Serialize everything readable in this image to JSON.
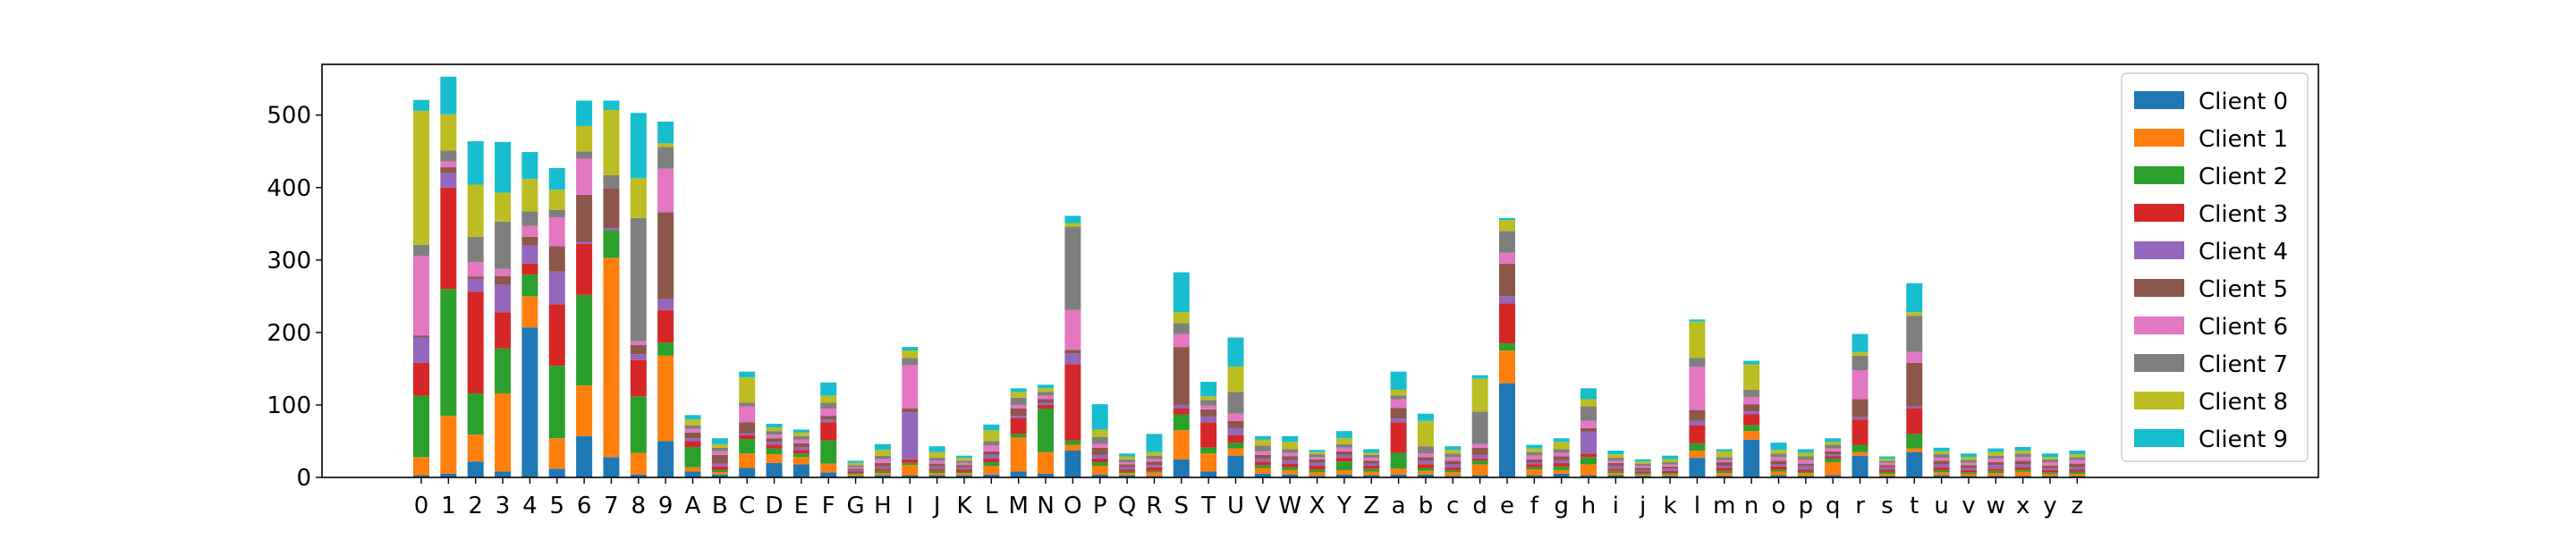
{
  "chart_data": {
    "type": "bar",
    "stacked": true,
    "title": "",
    "xlabel": "",
    "ylabel": "",
    "ylim": [
      0,
      570
    ],
    "yticks": [
      0,
      100,
      200,
      300,
      400,
      500
    ],
    "grid": false,
    "legend_position": "top-right",
    "categories": [
      "0",
      "1",
      "2",
      "3",
      "4",
      "5",
      "6",
      "7",
      "8",
      "9",
      "A",
      "B",
      "C",
      "D",
      "E",
      "F",
      "G",
      "H",
      "I",
      "J",
      "K",
      "L",
      "M",
      "N",
      "O",
      "P",
      "Q",
      "R",
      "S",
      "T",
      "U",
      "V",
      "W",
      "X",
      "Y",
      "Z",
      "a",
      "b",
      "c",
      "d",
      "e",
      "f",
      "g",
      "h",
      "i",
      "j",
      "k",
      "l",
      "m",
      "n",
      "o",
      "p",
      "q",
      "r",
      "s",
      "t",
      "u",
      "v",
      "w",
      "x",
      "y",
      "z"
    ],
    "series": [
      {
        "name": "Client 0",
        "color": "#1f77b4",
        "values": [
          3,
          5,
          22,
          8,
          207,
          12,
          57,
          28,
          4,
          50,
          8,
          4,
          13,
          20,
          18,
          7,
          2,
          3,
          3,
          3,
          3,
          4,
          8,
          5,
          37,
          4,
          3,
          2,
          25,
          8,
          30,
          5,
          4,
          2,
          4,
          3,
          4,
          4,
          2,
          3,
          130,
          3,
          5,
          3,
          3,
          2,
          2,
          27,
          2,
          52,
          3,
          2,
          3,
          30,
          2,
          35,
          3,
          2,
          2,
          2,
          2,
          2
        ]
      },
      {
        "name": "Client 1",
        "color": "#ff7f0e",
        "values": [
          25,
          80,
          37,
          108,
          43,
          42,
          70,
          275,
          30,
          118,
          6,
          3,
          20,
          12,
          10,
          12,
          2,
          3,
          14,
          3,
          3,
          12,
          47,
          30,
          8,
          12,
          3,
          5,
          40,
          25,
          10,
          8,
          6,
          5,
          6,
          5,
          8,
          5,
          5,
          15,
          45,
          8,
          5,
          15,
          3,
          2,
          2,
          10,
          4,
          12,
          5,
          4,
          18,
          5,
          3,
          5,
          4,
          3,
          4,
          6,
          3,
          3
        ]
      },
      {
        "name": "Client 2",
        "color": "#2ca02c",
        "values": [
          85,
          175,
          57,
          62,
          30,
          100,
          125,
          38,
          78,
          18,
          28,
          3,
          20,
          8,
          5,
          32,
          2,
          3,
          3,
          3,
          2,
          5,
          5,
          60,
          6,
          5,
          2,
          2,
          22,
          8,
          8,
          4,
          4,
          4,
          12,
          4,
          22,
          4,
          3,
          5,
          10,
          3,
          5,
          10,
          3,
          2,
          2,
          10,
          3,
          8,
          3,
          2,
          5,
          10,
          3,
          20,
          3,
          2,
          3,
          3,
          2,
          3
        ]
      },
      {
        "name": "Client 3",
        "color": "#d62728",
        "values": [
          45,
          140,
          140,
          50,
          15,
          85,
          70,
          0,
          50,
          45,
          8,
          5,
          5,
          5,
          5,
          25,
          2,
          3,
          5,
          3,
          3,
          5,
          22,
          5,
          105,
          5,
          3,
          5,
          8,
          35,
          10,
          5,
          5,
          5,
          5,
          4,
          42,
          5,
          4,
          3,
          55,
          4,
          5,
          5,
          3,
          2,
          3,
          25,
          4,
          15,
          4,
          3,
          3,
          35,
          3,
          35,
          4,
          3,
          3,
          3,
          3,
          3
        ]
      },
      {
        "name": "Client 4",
        "color": "#9467bd",
        "values": [
          35,
          20,
          18,
          38,
          25,
          45,
          3,
          3,
          8,
          15,
          4,
          4,
          3,
          4,
          4,
          4,
          2,
          3,
          65,
          3,
          3,
          5,
          3,
          3,
          15,
          5,
          3,
          3,
          5,
          8,
          10,
          4,
          5,
          4,
          4,
          3,
          5,
          5,
          4,
          5,
          10,
          3,
          4,
          30,
          4,
          2,
          3,
          6,
          3,
          4,
          3,
          5,
          3,
          3,
          3,
          3,
          4,
          3,
          5,
          4,
          3,
          3
        ]
      },
      {
        "name": "Client 5",
        "color": "#8c564b",
        "values": [
          3,
          8,
          3,
          12,
          12,
          35,
          65,
          55,
          13,
          120,
          8,
          12,
          15,
          5,
          5,
          5,
          2,
          5,
          5,
          4,
          3,
          5,
          10,
          5,
          5,
          10,
          4,
          5,
          80,
          10,
          10,
          5,
          5,
          5,
          5,
          4,
          15,
          5,
          5,
          10,
          45,
          4,
          5,
          5,
          4,
          3,
          3,
          15,
          5,
          10,
          5,
          3,
          4,
          25,
          3,
          60,
          5,
          4,
          4,
          5,
          3,
          5
        ]
      },
      {
        "name": "Client 6",
        "color": "#e377c2",
        "values": [
          110,
          8,
          20,
          10,
          15,
          40,
          50,
          0,
          5,
          60,
          5,
          5,
          22,
          5,
          5,
          10,
          2,
          5,
          60,
          4,
          3,
          8,
          5,
          5,
          55,
          5,
          3,
          3,
          18,
          5,
          10,
          5,
          5,
          3,
          5,
          4,
          12,
          5,
          5,
          5,
          15,
          5,
          5,
          10,
          3,
          3,
          3,
          60,
          3,
          10,
          5,
          5,
          4,
          40,
          3,
          15,
          4,
          3,
          5,
          5,
          5,
          5
        ]
      },
      {
        "name": "Client 7",
        "color": "#7f7f7f",
        "values": [
          15,
          15,
          35,
          65,
          20,
          10,
          10,
          18,
          170,
          30,
          5,
          5,
          5,
          5,
          5,
          8,
          3,
          5,
          10,
          4,
          3,
          6,
          10,
          5,
          115,
          10,
          4,
          5,
          15,
          8,
          30,
          8,
          5,
          4,
          5,
          4,
          5,
          10,
          5,
          45,
          30,
          5,
          5,
          20,
          4,
          3,
          3,
          12,
          4,
          10,
          5,
          5,
          5,
          20,
          3,
          50,
          5,
          4,
          4,
          5,
          4,
          4
        ]
      },
      {
        "name": "Client 8",
        "color": "#bcbd22",
        "values": [
          185,
          50,
          72,
          40,
          45,
          28,
          35,
          90,
          55,
          5,
          8,
          5,
          35,
          5,
          5,
          10,
          3,
          8,
          10,
          8,
          4,
          15,
          8,
          5,
          5,
          10,
          4,
          5,
          15,
          5,
          35,
          8,
          10,
          3,
          8,
          3,
          8,
          35,
          5,
          45,
          15,
          5,
          10,
          10,
          5,
          3,
          4,
          50,
          8,
          35,
          5,
          5,
          4,
          5,
          3,
          5,
          4,
          4,
          5,
          4,
          3,
          4
        ]
      },
      {
        "name": "Client 9",
        "color": "#17becf",
        "values": [
          15,
          52,
          60,
          70,
          37,
          30,
          35,
          13,
          90,
          30,
          6,
          8,
          8,
          5,
          4,
          18,
          3,
          8,
          5,
          8,
          3,
          8,
          5,
          5,
          10,
          35,
          4,
          25,
          55,
          20,
          40,
          5,
          8,
          3,
          10,
          5,
          25,
          10,
          5,
          5,
          3,
          5,
          5,
          15,
          5,
          3,
          5,
          3,
          3,
          5,
          10,
          5,
          5,
          25,
          3,
          40,
          5,
          5,
          5,
          5,
          5,
          5
        ]
      }
    ]
  }
}
